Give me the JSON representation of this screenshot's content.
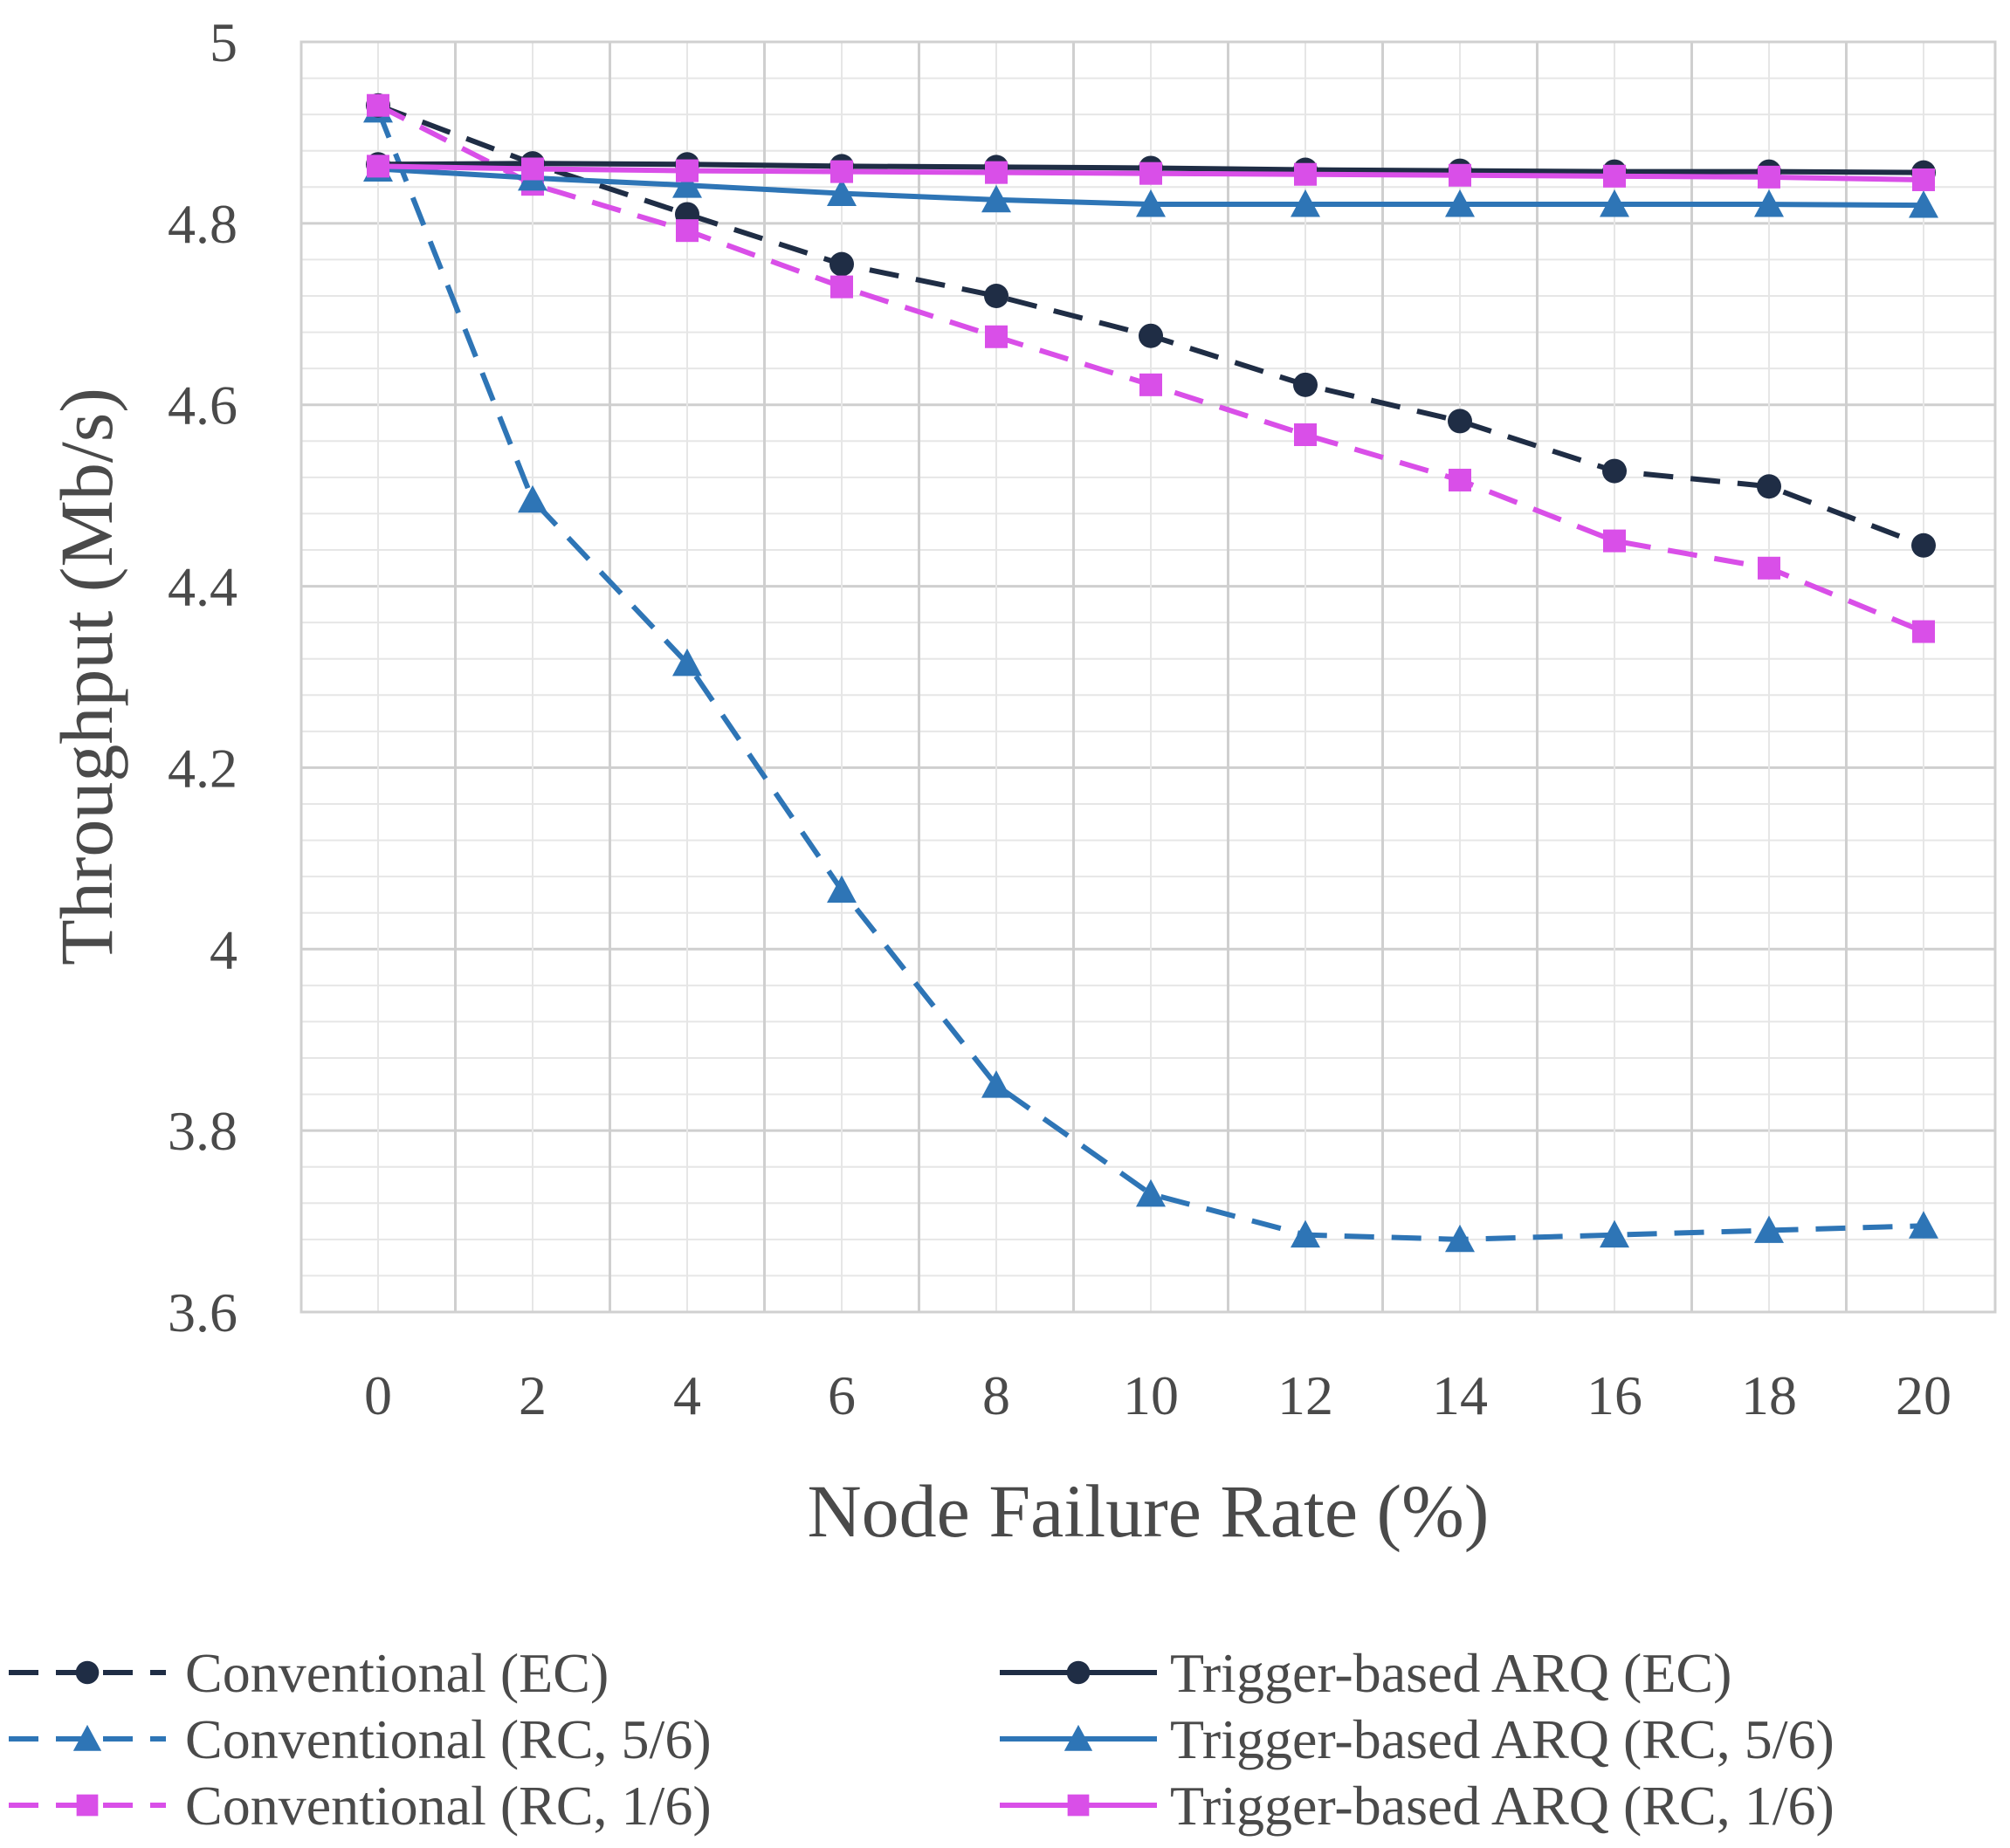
{
  "chart_data": {
    "type": "line",
    "title": "",
    "xlabel": "Node Failure Rate (%)",
    "ylabel": "Throughput (Mb/s)",
    "x": [
      0,
      2,
      4,
      6,
      8,
      10,
      12,
      14,
      16,
      18,
      20
    ],
    "x_tick_labels": [
      "0",
      "2",
      "4",
      "6",
      "8",
      "10",
      "12",
      "14",
      "16",
      "18",
      "20"
    ],
    "ylim": [
      3.6,
      5
    ],
    "y_ticks": [
      3.6,
      3.8,
      4,
      4.2,
      4.4,
      4.6,
      4.8,
      5
    ],
    "y_tick_labels": [
      "3.6",
      "3.8",
      "4",
      "4.2",
      "4.4",
      "4.6",
      "4.8",
      "5"
    ],
    "grid": true,
    "legend_position": "bottom",
    "series": [
      {
        "name": "Conventional (EC)",
        "color": "#1f2d45",
        "dash": "dashed",
        "marker": "circle",
        "values": [
          4.93,
          4.866,
          4.81,
          4.755,
          4.72,
          4.676,
          4.622,
          4.582,
          4.527,
          4.51,
          4.445
        ]
      },
      {
        "name": "Conventional (RC, 5/6)",
        "color": "#2e75b6",
        "dash": "dashed",
        "marker": "triangle",
        "values": [
          4.925,
          4.495,
          4.315,
          4.065,
          3.85,
          3.73,
          3.685,
          3.68,
          3.685,
          3.69,
          3.695
        ]
      },
      {
        "name": "Conventional (RC, 1/6)",
        "color": "#d94fe8",
        "dash": "dashed",
        "marker": "square",
        "values": [
          4.93,
          4.843,
          4.792,
          4.73,
          4.675,
          4.622,
          4.567,
          4.517,
          4.45,
          4.42,
          4.35
        ]
      },
      {
        "name": "Trigger-based ARQ (EC)",
        "color": "#1f2d45",
        "dash": "solid",
        "marker": "circle",
        "values": [
          4.865,
          4.866,
          4.865,
          4.863,
          4.862,
          4.861,
          4.859,
          4.858,
          4.857,
          4.857,
          4.856
        ]
      },
      {
        "name": "Trigger-based ARQ (RC, 5/6)",
        "color": "#2e75b6",
        "dash": "solid",
        "marker": "triangle",
        "values": [
          4.86,
          4.85,
          4.842,
          4.833,
          4.826,
          4.821,
          4.821,
          4.821,
          4.821,
          4.821,
          4.82
        ]
      },
      {
        "name": "Trigger-based ARQ (RC, 1/6)",
        "color": "#d94fe8",
        "dash": "solid",
        "marker": "square",
        "values": [
          4.863,
          4.86,
          4.858,
          4.857,
          4.856,
          4.855,
          4.854,
          4.853,
          4.852,
          4.851,
          4.848
        ]
      }
    ]
  }
}
